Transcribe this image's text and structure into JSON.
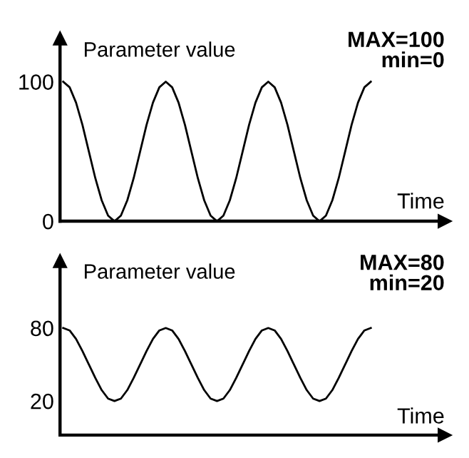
{
  "chart_data": [
    {
      "type": "line",
      "ylabel": "Parameter value",
      "xlabel": "Time",
      "annotations": [
        "MAX=100\nmin=0"
      ],
      "ylim": [
        0,
        131
      ],
      "yticks": [
        0,
        100
      ],
      "marker": "none",
      "color": "#000000",
      "categories": [
        null,
        null,
        null,
        null,
        null,
        null,
        null,
        null,
        null,
        null,
        null,
        null,
        null,
        null,
        null,
        null,
        null,
        null,
        null,
        null,
        null,
        null,
        null,
        null,
        null,
        null,
        null,
        null,
        null,
        null,
        null,
        null,
        null,
        null,
        null,
        null,
        null,
        null,
        null,
        null,
        null,
        null,
        null,
        null,
        null,
        null,
        null,
        null,
        null
      ],
      "values": [
        100,
        96,
        85,
        69,
        50,
        31,
        15,
        4,
        0,
        4,
        15,
        31,
        50,
        69,
        85,
        96,
        100,
        96,
        85,
        69,
        50,
        31,
        15,
        4,
        0,
        4,
        15,
        31,
        50,
        69,
        85,
        96,
        100,
        96,
        85,
        69,
        50,
        31,
        15,
        4,
        0,
        4,
        15,
        31,
        50,
        69,
        85,
        96,
        100
      ]
    },
    {
      "type": "line",
      "ylabel": "Parameter value",
      "xlabel": "Time",
      "annotations": [
        "MAX=80\nmin=20"
      ],
      "ylim": [
        -8,
        135
      ],
      "yticks": [
        20,
        80
      ],
      "marker": "none",
      "color": "#000000",
      "categories": [
        null,
        null,
        null,
        null,
        null,
        null,
        null,
        null,
        null,
        null,
        null,
        null,
        null,
        null,
        null,
        null,
        null,
        null,
        null,
        null,
        null,
        null,
        null,
        null,
        null,
        null,
        null,
        null,
        null,
        null,
        null,
        null,
        null,
        null,
        null,
        null,
        null,
        null,
        null,
        null,
        null,
        null,
        null,
        null,
        null,
        null,
        null,
        null,
        null
      ],
      "values": [
        80,
        78,
        71,
        61,
        50,
        39,
        29,
        22,
        20,
        22,
        29,
        39,
        50,
        61,
        71,
        78,
        80,
        78,
        71,
        61,
        50,
        39,
        29,
        22,
        20,
        22,
        29,
        39,
        50,
        61,
        71,
        78,
        80,
        78,
        71,
        61,
        50,
        39,
        29,
        22,
        20,
        22,
        29,
        39,
        50,
        61,
        71,
        78,
        80
      ]
    }
  ]
}
